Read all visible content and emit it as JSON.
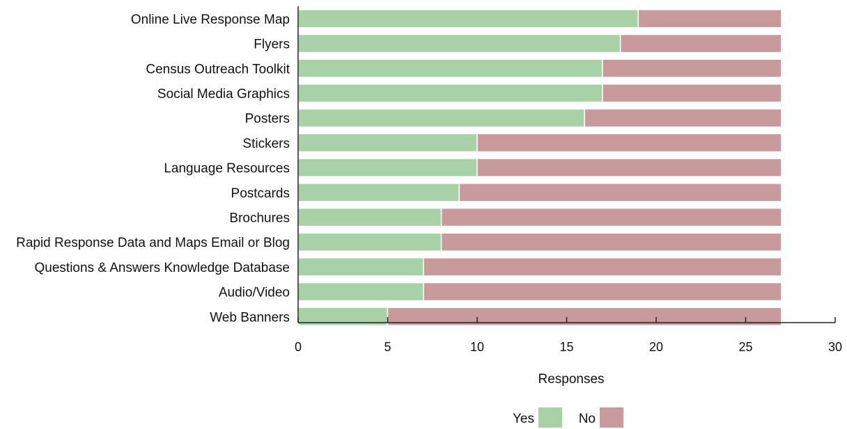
{
  "chart_data": {
    "type": "bar",
    "orientation": "horizontal",
    "stacked": true,
    "categories": [
      "Online Live Response Map",
      "Flyers",
      "Census Outreach Toolkit",
      "Social Media Graphics",
      "Posters",
      "Stickers",
      "Language Resources",
      "Postcards",
      "Brochures",
      "Rapid Response Data and Maps Email or Blog",
      "Questions & Answers Knowledge Database",
      "Audio/Video",
      "Web Banners"
    ],
    "series": [
      {
        "name": "Yes",
        "color": "#a8d1a8",
        "values": [
          19,
          18,
          17,
          17,
          16,
          10,
          10,
          9,
          8,
          8,
          7,
          7,
          5
        ]
      },
      {
        "name": "No",
        "color": "#c99a9b",
        "values": [
          8,
          9,
          10,
          10,
          11,
          17,
          17,
          18,
          19,
          19,
          20,
          20,
          22
        ]
      }
    ],
    "xlabel": "Responses",
    "ylabel": "",
    "xlim": [
      0,
      30
    ],
    "xticks": [
      "0",
      "5",
      "10",
      "15",
      "20",
      "25",
      "30"
    ],
    "grid": false,
    "legend_position": "bottom"
  }
}
